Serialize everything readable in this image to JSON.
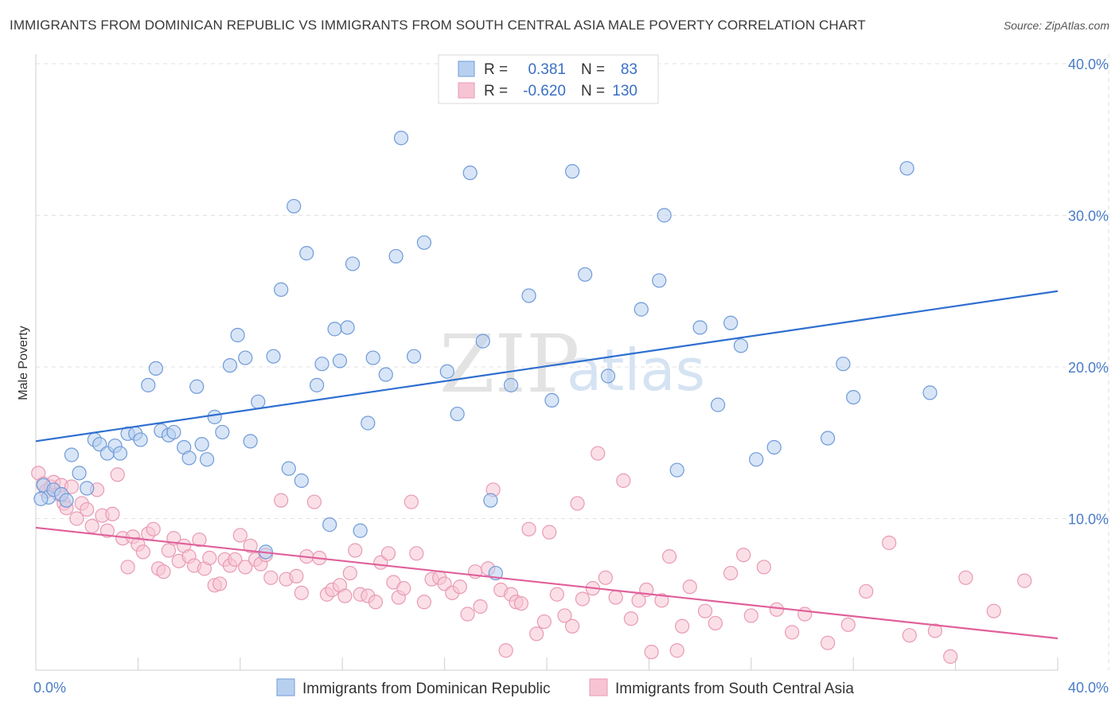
{
  "title": "IMMIGRANTS FROM DOMINICAN REPUBLIC VS IMMIGRANTS FROM SOUTH CENTRAL ASIA MALE POVERTY CORRELATION CHART",
  "source": "Source: ZipAtlas.com",
  "colors": {
    "blue_stroke": "#6f9bd8",
    "blue_fill": "#b8d0f0",
    "blue_line": "#2f6fd0",
    "pink_stroke": "#e89ab4",
    "pink_fill": "#f7c4d4",
    "pink_line": "#e0609a",
    "grid": "#e2e2e2",
    "axis_label": "#4a7cc7"
  },
  "legend": {
    "row1": {
      "r_label": "R =",
      "r_value": "0.381",
      "n_label": "N =",
      "n_value": "83"
    },
    "row2": {
      "r_label": "R =",
      "r_value": "-0.620",
      "n_label": "N =",
      "n_value": "130"
    }
  },
  "watermark": {
    "zip": "ZIP",
    "atlas": "atlas"
  },
  "chart_data": {
    "type": "scatter",
    "title": "IMMIGRANTS FROM DOMINICAN REPUBLIC VS IMMIGRANTS FROM SOUTH CENTRAL ASIA MALE POVERTY CORRELATION CHART",
    "xlabel": "",
    "ylabel": "Male Poverty",
    "xlim": [
      0,
      40
    ],
    "ylim": [
      0,
      40
    ],
    "x_tick_labels": [
      "0.0%",
      "40.0%"
    ],
    "y_ticks": [
      10,
      20,
      30,
      40
    ],
    "y_tick_labels": [
      "10.0%",
      "20.0%",
      "30.0%",
      "40.0%"
    ],
    "grid": true,
    "legend_position": "top-center",
    "series": [
      {
        "name": "Immigrants from Dominican Republic",
        "color": "#6f9bd8",
        "r": 0.381,
        "n": 83,
        "trend": {
          "x": [
            0,
            40
          ],
          "y": [
            15.1,
            25.0
          ]
        },
        "points": [
          [
            0.3,
            12.2
          ],
          [
            0.5,
            11.4
          ],
          [
            0.7,
            11.9
          ],
          [
            1.0,
            11.6
          ],
          [
            1.2,
            11.2
          ],
          [
            1.4,
            14.2
          ],
          [
            1.7,
            13.0
          ],
          [
            2.0,
            12.0
          ],
          [
            2.3,
            15.2
          ],
          [
            2.5,
            14.9
          ],
          [
            2.8,
            14.3
          ],
          [
            3.1,
            14.8
          ],
          [
            3.3,
            14.3
          ],
          [
            3.6,
            15.6
          ],
          [
            3.9,
            15.6
          ],
          [
            4.1,
            15.2
          ],
          [
            4.4,
            18.8
          ],
          [
            4.7,
            19.9
          ],
          [
            4.9,
            15.8
          ],
          [
            5.2,
            15.5
          ],
          [
            5.4,
            15.7
          ],
          [
            5.8,
            14.7
          ],
          [
            6.0,
            14.0
          ],
          [
            6.3,
            18.7
          ],
          [
            6.5,
            14.9
          ],
          [
            6.7,
            13.9
          ],
          [
            7.0,
            16.7
          ],
          [
            7.3,
            15.7
          ],
          [
            7.6,
            20.1
          ],
          [
            7.9,
            22.1
          ],
          [
            8.2,
            20.6
          ],
          [
            8.4,
            15.1
          ],
          [
            8.7,
            17.7
          ],
          [
            9.0,
            7.8
          ],
          [
            9.3,
            20.7
          ],
          [
            9.6,
            25.1
          ],
          [
            9.9,
            13.3
          ],
          [
            10.1,
            30.6
          ],
          [
            10.4,
            12.5
          ],
          [
            10.6,
            27.5
          ],
          [
            11.0,
            18.8
          ],
          [
            11.2,
            20.2
          ],
          [
            11.5,
            9.6
          ],
          [
            11.7,
            22.5
          ],
          [
            11.9,
            20.4
          ],
          [
            12.2,
            22.6
          ],
          [
            12.4,
            26.8
          ],
          [
            12.7,
            9.2
          ],
          [
            13.0,
            16.3
          ],
          [
            13.2,
            20.6
          ],
          [
            13.7,
            19.5
          ],
          [
            14.1,
            27.3
          ],
          [
            14.3,
            35.1
          ],
          [
            14.8,
            20.7
          ],
          [
            15.2,
            28.2
          ],
          [
            16.1,
            19.7
          ],
          [
            16.5,
            16.9
          ],
          [
            17.0,
            32.8
          ],
          [
            17.5,
            21.7
          ],
          [
            17.8,
            11.2
          ],
          [
            18.0,
            6.4
          ],
          [
            18.6,
            18.8
          ],
          [
            19.3,
            24.7
          ],
          [
            20.2,
            17.8
          ],
          [
            21.0,
            32.9
          ],
          [
            21.5,
            26.1
          ],
          [
            22.4,
            19.4
          ],
          [
            23.7,
            23.8
          ],
          [
            24.4,
            25.7
          ],
          [
            24.6,
            30.0
          ],
          [
            25.1,
            13.2
          ],
          [
            26.0,
            22.6
          ],
          [
            26.7,
            17.5
          ],
          [
            27.2,
            22.9
          ],
          [
            27.6,
            21.4
          ],
          [
            28.2,
            13.9
          ],
          [
            28.9,
            14.7
          ],
          [
            31.0,
            15.3
          ],
          [
            31.6,
            20.2
          ],
          [
            32.0,
            18.0
          ],
          [
            34.1,
            33.1
          ],
          [
            35.0,
            18.3
          ],
          [
            0.2,
            11.3
          ]
        ]
      },
      {
        "name": "Immigrants from South Central Asia",
        "color": "#e89ab4",
        "r": -0.62,
        "n": 130,
        "trend": {
          "x": [
            0,
            40
          ],
          "y": [
            9.4,
            2.1
          ]
        },
        "points": [
          [
            0.1,
            13.0
          ],
          [
            0.3,
            12.3
          ],
          [
            0.4,
            11.8
          ],
          [
            0.6,
            12.1
          ],
          [
            0.7,
            12.4
          ],
          [
            0.9,
            11.6
          ],
          [
            1.0,
            12.2
          ],
          [
            1.1,
            11.0
          ],
          [
            1.2,
            10.7
          ],
          [
            1.4,
            12.1
          ],
          [
            1.6,
            10.0
          ],
          [
            1.8,
            11.0
          ],
          [
            2.0,
            10.6
          ],
          [
            2.2,
            9.5
          ],
          [
            2.4,
            11.9
          ],
          [
            2.6,
            10.2
          ],
          [
            2.8,
            9.2
          ],
          [
            3.0,
            10.3
          ],
          [
            3.2,
            12.9
          ],
          [
            3.4,
            8.7
          ],
          [
            3.6,
            6.8
          ],
          [
            3.8,
            8.8
          ],
          [
            4.0,
            8.3
          ],
          [
            4.2,
            7.8
          ],
          [
            4.4,
            9.0
          ],
          [
            4.6,
            9.3
          ],
          [
            4.8,
            6.7
          ],
          [
            5.0,
            6.5
          ],
          [
            5.2,
            7.9
          ],
          [
            5.4,
            8.7
          ],
          [
            5.6,
            7.2
          ],
          [
            5.8,
            8.2
          ],
          [
            6.0,
            7.5
          ],
          [
            6.2,
            6.9
          ],
          [
            6.4,
            8.6
          ],
          [
            6.6,
            6.7
          ],
          [
            6.8,
            7.4
          ],
          [
            7.0,
            5.6
          ],
          [
            7.2,
            5.7
          ],
          [
            7.4,
            7.3
          ],
          [
            7.6,
            6.9
          ],
          [
            7.8,
            7.3
          ],
          [
            8.0,
            8.9
          ],
          [
            8.2,
            6.8
          ],
          [
            8.4,
            8.2
          ],
          [
            8.6,
            7.3
          ],
          [
            8.8,
            7.0
          ],
          [
            9.0,
            7.6
          ],
          [
            9.2,
            6.1
          ],
          [
            9.6,
            11.2
          ],
          [
            9.8,
            6.0
          ],
          [
            10.2,
            6.2
          ],
          [
            10.4,
            5.1
          ],
          [
            10.6,
            7.5
          ],
          [
            10.9,
            11.1
          ],
          [
            11.1,
            7.4
          ],
          [
            11.4,
            5.0
          ],
          [
            11.6,
            5.3
          ],
          [
            11.9,
            5.6
          ],
          [
            12.1,
            4.9
          ],
          [
            12.3,
            6.4
          ],
          [
            12.5,
            7.9
          ],
          [
            12.7,
            5.0
          ],
          [
            13.0,
            4.9
          ],
          [
            13.3,
            4.5
          ],
          [
            13.5,
            7.1
          ],
          [
            13.8,
            7.7
          ],
          [
            14.0,
            5.8
          ],
          [
            14.2,
            4.8
          ],
          [
            14.4,
            5.4
          ],
          [
            14.7,
            11.1
          ],
          [
            14.9,
            7.7
          ],
          [
            15.2,
            4.5
          ],
          [
            15.5,
            6.0
          ],
          [
            15.8,
            6.1
          ],
          [
            16.0,
            5.7
          ],
          [
            16.3,
            5.1
          ],
          [
            16.6,
            5.5
          ],
          [
            16.9,
            3.7
          ],
          [
            17.2,
            6.5
          ],
          [
            17.4,
            4.2
          ],
          [
            17.7,
            6.7
          ],
          [
            17.9,
            11.9
          ],
          [
            18.2,
            5.3
          ],
          [
            18.4,
            1.3
          ],
          [
            18.6,
            5.0
          ],
          [
            18.8,
            4.5
          ],
          [
            19.0,
            4.4
          ],
          [
            19.3,
            9.3
          ],
          [
            19.6,
            2.4
          ],
          [
            19.9,
            3.2
          ],
          [
            20.1,
            9.1
          ],
          [
            20.4,
            5.0
          ],
          [
            20.7,
            3.6
          ],
          [
            21.0,
            2.9
          ],
          [
            21.2,
            11.0
          ],
          [
            21.4,
            4.7
          ],
          [
            21.8,
            5.4
          ],
          [
            22.0,
            14.3
          ],
          [
            22.3,
            6.1
          ],
          [
            22.7,
            4.8
          ],
          [
            23.0,
            12.5
          ],
          [
            23.3,
            3.4
          ],
          [
            23.6,
            4.6
          ],
          [
            23.9,
            5.3
          ],
          [
            24.1,
            1.2
          ],
          [
            24.5,
            4.6
          ],
          [
            24.8,
            7.5
          ],
          [
            25.1,
            1.3
          ],
          [
            25.3,
            2.9
          ],
          [
            25.6,
            5.5
          ],
          [
            26.2,
            3.9
          ],
          [
            26.6,
            3.1
          ],
          [
            27.2,
            6.4
          ],
          [
            27.7,
            7.6
          ],
          [
            28.0,
            3.6
          ],
          [
            28.5,
            6.8
          ],
          [
            29.0,
            4.0
          ],
          [
            29.6,
            2.5
          ],
          [
            30.1,
            3.7
          ],
          [
            31.0,
            1.8
          ],
          [
            31.8,
            3.0
          ],
          [
            32.5,
            5.2
          ],
          [
            33.4,
            8.4
          ],
          [
            34.2,
            2.3
          ],
          [
            35.2,
            2.6
          ],
          [
            35.8,
            0.9
          ],
          [
            36.4,
            6.1
          ],
          [
            37.5,
            3.9
          ],
          [
            38.7,
            5.9
          ]
        ]
      }
    ]
  },
  "bottom_legend": {
    "item1": "Immigrants from Dominican Republic",
    "item2": "Immigrants from South Central Asia"
  }
}
